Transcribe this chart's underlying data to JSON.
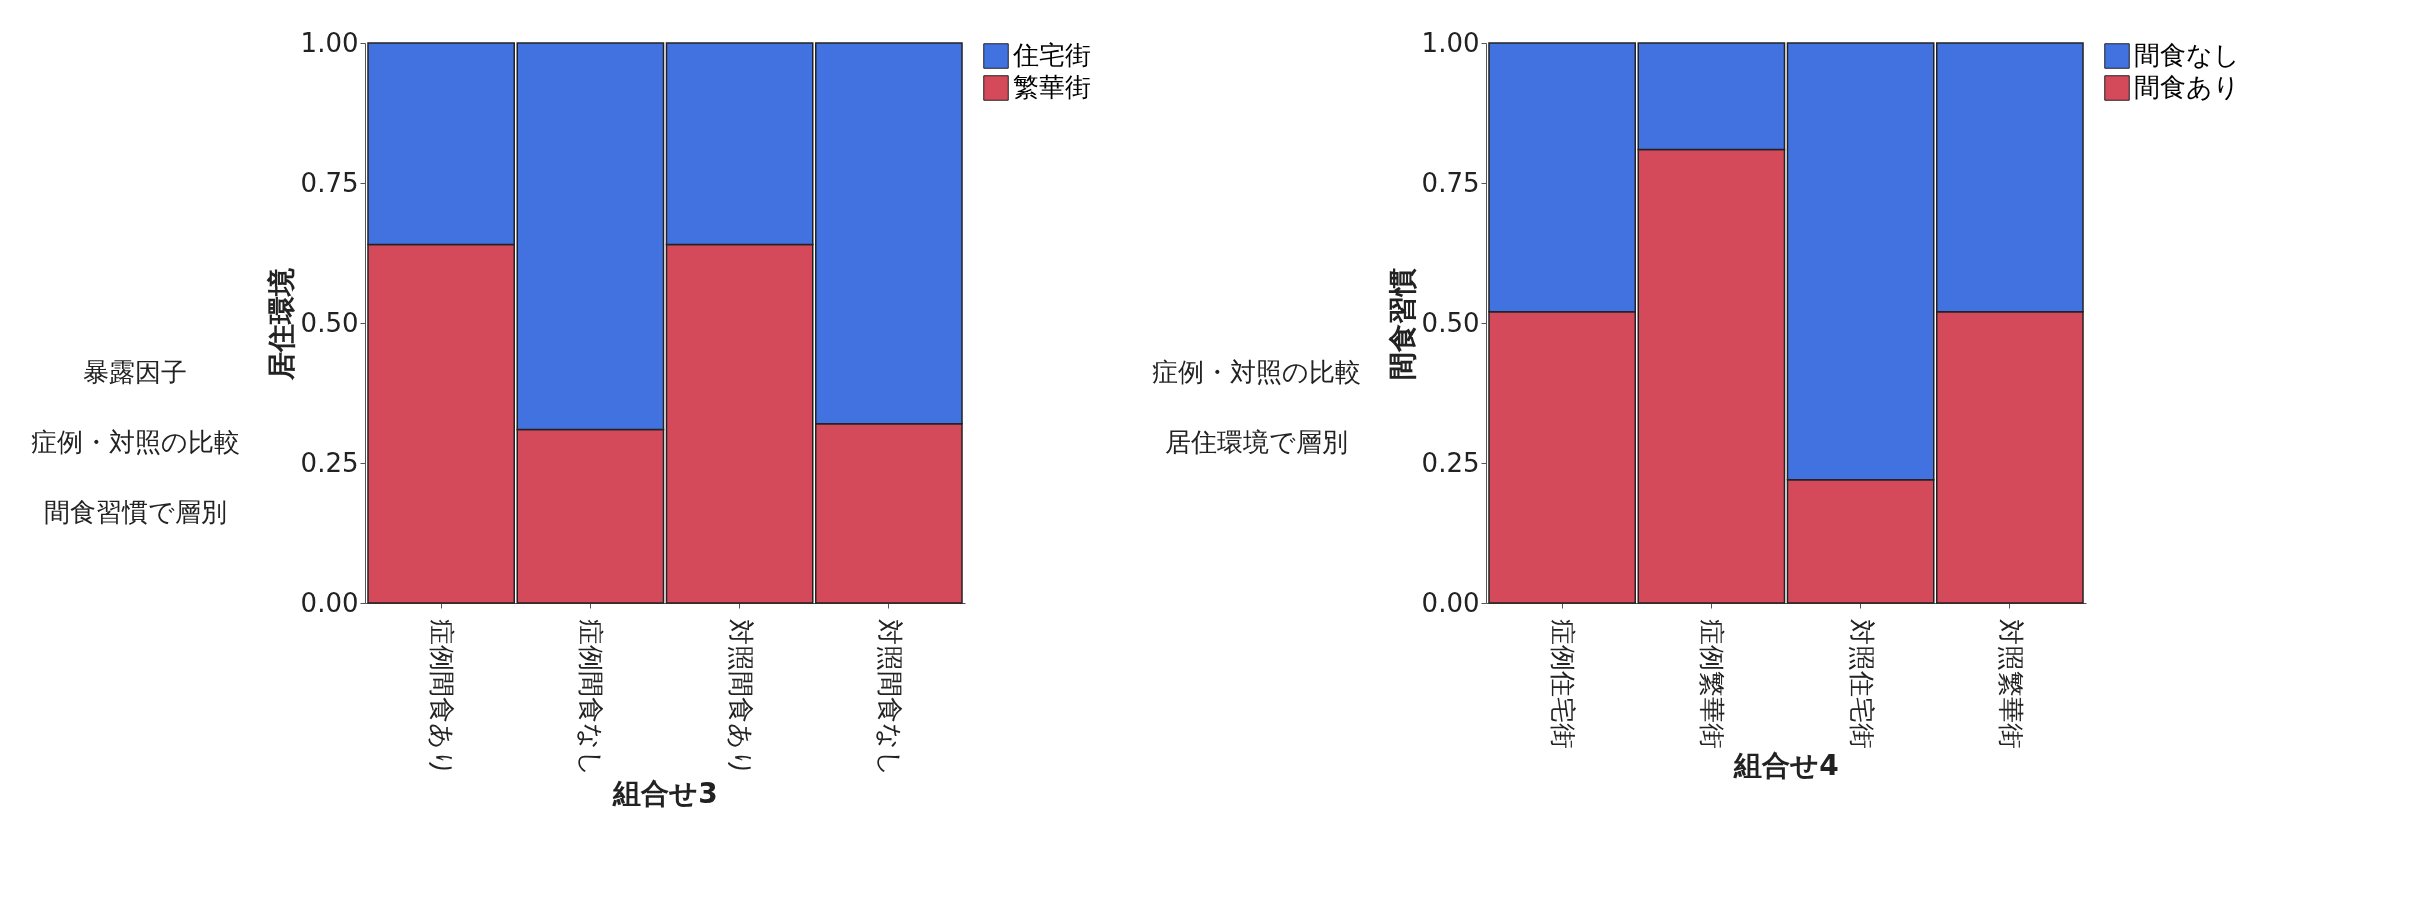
{
  "chart_data": [
    {
      "type": "bar",
      "stacked": true,
      "xlabel": "組合せ3",
      "ylabel": "居住環境",
      "categories": [
        "症例間食あり",
        "症例間食なし",
        "対照間食あり",
        "対照間食なし"
      ],
      "series": [
        {
          "name": "繁華街",
          "color": "#d44a5a",
          "values": [
            0.64,
            0.31,
            0.64,
            0.32
          ]
        },
        {
          "name": "住宅街",
          "color": "#4272e0",
          "values": [
            0.36,
            0.69,
            0.36,
            0.68
          ]
        }
      ],
      "ylim": [
        0,
        1
      ],
      "yticks": [
        {
          "value": 0,
          "label": "0.00"
        },
        {
          "value": 0.25,
          "label": "0.25"
        },
        {
          "value": 0.5,
          "label": "0.50"
        },
        {
          "value": 0.75,
          "label": "0.75"
        },
        {
          "value": 1,
          "label": "1.00"
        }
      ],
      "grid": false,
      "legend": "right",
      "annotations": [
        "暴露因子",
        "症例・対照の比較",
        "間食習慣で層別"
      ]
    },
    {
      "type": "bar",
      "stacked": true,
      "xlabel": "組合せ4",
      "ylabel": "間食習慣",
      "categories": [
        "症例住宅街",
        "症例繁華街",
        "対照住宅街",
        "対照繁華街"
      ],
      "series": [
        {
          "name": "間食あり",
          "color": "#d44a5a",
          "values": [
            0.52,
            0.81,
            0.22,
            0.52
          ]
        },
        {
          "name": "間食なし",
          "color": "#4272e0",
          "values": [
            0.48,
            0.19,
            0.78,
            0.48
          ]
        }
      ],
      "ylim": [
        0,
        1
      ],
      "yticks": [
        {
          "value": 0,
          "label": "0.00"
        },
        {
          "value": 0.25,
          "label": "0.25"
        },
        {
          "value": 0.5,
          "label": "0.50"
        },
        {
          "value": 0.75,
          "label": "0.75"
        },
        {
          "value": 1,
          "label": "1.00"
        }
      ],
      "grid": false,
      "legend": "right",
      "annotations": [
        "症例・対照の比較",
        "居住環境で層別"
      ]
    }
  ]
}
